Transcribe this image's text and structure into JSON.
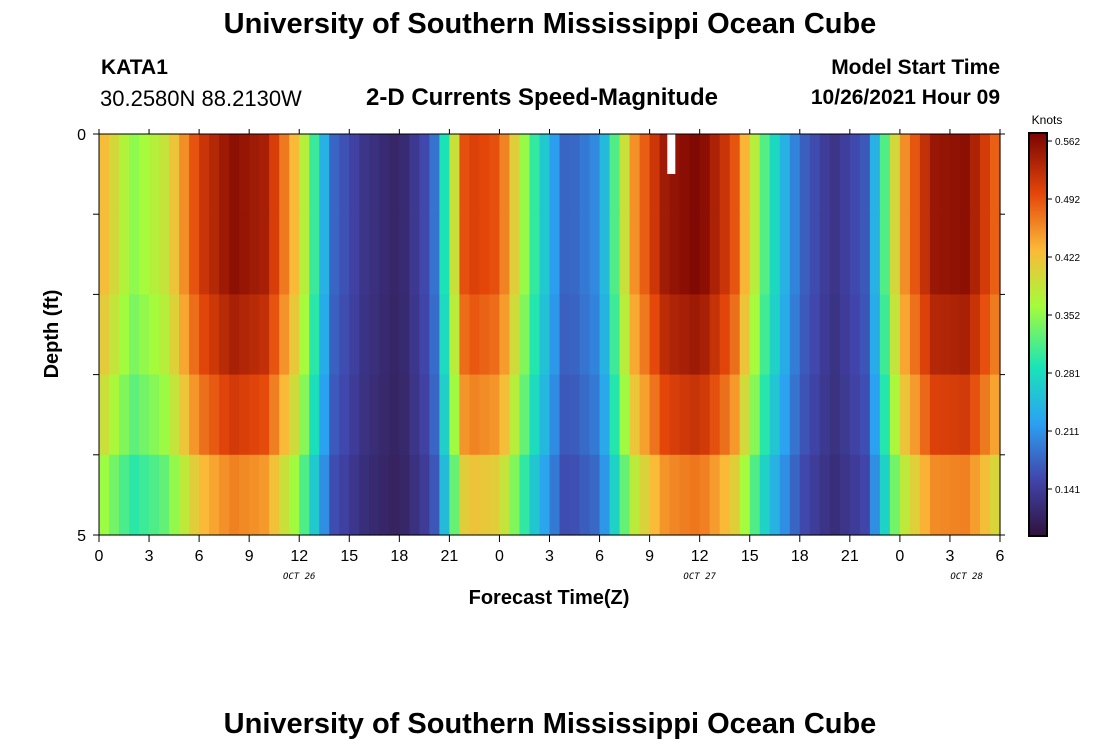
{
  "page": {
    "title": "University of Southern Mississippi Ocean Cube",
    "footer_title": "University of Southern Mississippi Ocean Cube"
  },
  "station": {
    "name": "KATA1",
    "coords": "30.2580N  88.2130W"
  },
  "model": {
    "label": "Model Start Time",
    "value": "10/26/2021 Hour 09"
  },
  "chart_data": {
    "type": "heatmap",
    "title": "2-D Currents Speed-Magnitude",
    "xlabel": "Forecast Time(Z)",
    "ylabel": "Depth (ft)",
    "x_ticks": [
      "0",
      "3",
      "6",
      "9",
      "12",
      "15",
      "18",
      "21",
      "0",
      "3",
      "6",
      "9",
      "12",
      "15",
      "18",
      "21",
      "0",
      "3",
      "6"
    ],
    "x_range_hours": [
      0,
      54
    ],
    "date_labels": [
      {
        "label": "OCT 26",
        "hour": 12
      },
      {
        "label": "OCT 27",
        "hour": 36
      },
      {
        "label": "OCT 28",
        "hour": 52
      }
    ],
    "y_ticks": [
      "0",
      "5"
    ],
    "ylim": [
      0,
      5
    ],
    "colorbar": {
      "unit": "Knots",
      "ticks": [
        "0.562",
        "0.492",
        "0.422",
        "0.352",
        "0.281",
        "0.211",
        "0.141"
      ],
      "min": 0.075,
      "max": 0.562
    },
    "depth_levels": 5,
    "layer_factors": [
      1.0,
      1.0,
      0.96,
      0.9,
      0.8
    ],
    "time_hours": [
      0,
      2,
      4,
      6,
      8,
      10,
      12,
      14,
      16,
      18,
      20,
      22,
      24,
      26,
      28,
      30,
      32,
      34,
      36,
      38,
      40,
      42,
      44,
      46,
      48,
      50,
      52,
      54
    ],
    "surface_speed_knots": [
      0.43,
      0.34,
      0.38,
      0.5,
      0.55,
      0.53,
      0.4,
      0.17,
      0.12,
      0.1,
      0.16,
      0.5,
      0.48,
      0.3,
      0.16,
      0.2,
      0.44,
      0.54,
      0.56,
      0.49,
      0.3,
      0.17,
      0.12,
      0.16,
      0.43,
      0.54,
      0.55,
      0.46
    ],
    "missing_marker_hour": 34.3
  }
}
